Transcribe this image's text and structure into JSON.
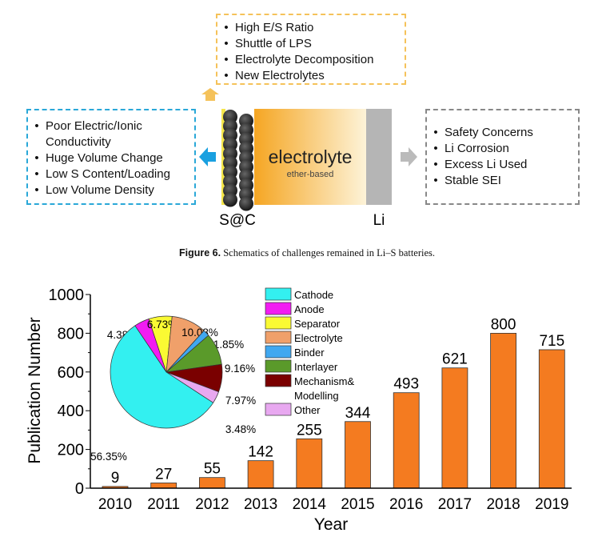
{
  "schematic": {
    "top_box": {
      "items": [
        "High E/S Ratio",
        "Shuttle of LPS",
        "Electrolyte Decomposition",
        "New Electrolytes"
      ],
      "color": "#f5c25a"
    },
    "left_box": {
      "items": [
        "Poor Electric/Ionic Conductivity",
        "Huge Volume Change",
        "Low S Content/Loading",
        "Low Volume Density"
      ],
      "color": "#2aa8d8"
    },
    "right_box": {
      "items": [
        "Safety Concerns",
        "Li Corrosion",
        "Excess Li Used",
        "Stable SEI"
      ],
      "color": "#888888"
    },
    "cell": {
      "electrolyte": "electrolyte",
      "electrolyte_sub": "ether-based",
      "cathode_label": "S@C",
      "anode_label": "Li"
    }
  },
  "caption": {
    "label": "Figure 6.",
    "text": " Schematics of challenges remained in Li–S batteries."
  },
  "chart_data": [
    {
      "type": "bar",
      "categories": [
        "2010",
        "2011",
        "2012",
        "2013",
        "2014",
        "2015",
        "2016",
        "2017",
        "2018",
        "2019"
      ],
      "values": [
        9,
        27,
        55,
        142,
        255,
        344,
        493,
        621,
        800,
        715
      ],
      "xlabel": "Year",
      "ylabel": "Publication Number",
      "ylim": [
        0,
        1000
      ],
      "yticks": [
        "0",
        "200",
        "400",
        "600",
        "800",
        "1000"
      ],
      "color": "#f47b20",
      "grid": false
    },
    {
      "type": "pie",
      "legend_position": "right",
      "slices": [
        {
          "name": "Cathode",
          "value": 56.35,
          "label": "56.35%",
          "color": "#33f0f0"
        },
        {
          "name": "Anode",
          "value": 4.38,
          "label": "4.38%",
          "color": "#f21cf2"
        },
        {
          "name": "Separator",
          "value": 6.73,
          "label": "6.73%",
          "color": "#fafa33"
        },
        {
          "name": "Electrolyte",
          "value": 10.08,
          "label": "10.08%",
          "color": "#f0a06a"
        },
        {
          "name": "Binder",
          "value": 1.85,
          "label": "1.85%",
          "color": "#40a8f0"
        },
        {
          "name": "Interlayer",
          "value": 9.16,
          "label": "9.16%",
          "color": "#5a9a2a"
        },
        {
          "name": "Mechanism& Modelling",
          "value": 7.97,
          "label": "7.97%",
          "color": "#7a0000"
        },
        {
          "name": "Other",
          "value": 3.48,
          "label": "3.48%",
          "color": "#e8a8f0"
        }
      ]
    }
  ]
}
